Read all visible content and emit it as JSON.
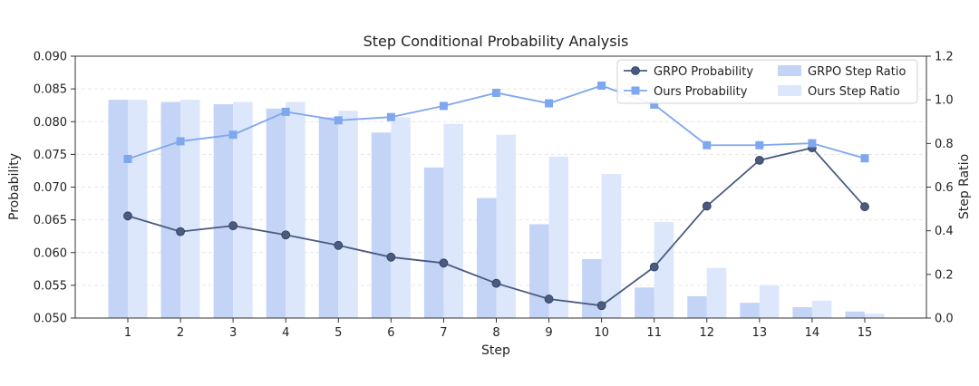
{
  "chart_data": {
    "type": "bar+line",
    "title": "Step Conditional Probability Analysis",
    "xlabel": "Step",
    "ylabel_left": "Probability",
    "ylabel_right": "Step Ratio",
    "categories": [
      "1",
      "2",
      "3",
      "4",
      "5",
      "6",
      "7",
      "8",
      "9",
      "10",
      "11",
      "12",
      "13",
      "14",
      "15"
    ],
    "ylim_left": [
      0.05,
      0.09
    ],
    "yticks_left": [
      "0.050",
      "0.055",
      "0.060",
      "0.065",
      "0.070",
      "0.075",
      "0.080",
      "0.085",
      "0.090"
    ],
    "ylim_right": [
      0.0,
      1.2
    ],
    "yticks_right": [
      "0.0",
      "0.2",
      "0.4",
      "0.6",
      "0.8",
      "1.0",
      "1.2"
    ],
    "grid": true,
    "legend_position": "top-right",
    "series": [
      {
        "name": "GRPO Probability",
        "kind": "line",
        "axis": "left",
        "marker": "circle",
        "color": "#4a5b80",
        "values": [
          0.0656,
          0.0632,
          0.0641,
          0.0627,
          0.0611,
          0.0593,
          0.0584,
          0.0553,
          0.0529,
          0.0519,
          0.0578,
          0.0671,
          0.0741,
          0.076,
          0.067
        ]
      },
      {
        "name": "Ours Probability",
        "kind": "line",
        "axis": "left",
        "marker": "square",
        "color": "#7fa7ef",
        "values": [
          0.0743,
          0.077,
          0.078,
          0.0815,
          0.0802,
          0.0807,
          0.0824,
          0.0844,
          0.0828,
          0.0855,
          0.0826,
          0.0764,
          0.0764,
          0.0767,
          0.0744
        ]
      },
      {
        "name": "GRPO Step Ratio",
        "kind": "bar",
        "axis": "right",
        "color": "#c3d4f7",
        "values": [
          1.0,
          0.99,
          0.98,
          0.96,
          0.92,
          0.85,
          0.69,
          0.55,
          0.43,
          0.27,
          0.14,
          0.1,
          0.07,
          0.05,
          0.03
        ]
      },
      {
        "name": "Ours Step Ratio",
        "kind": "bar",
        "axis": "right",
        "color": "#dde7fb",
        "values": [
          1.0,
          1.0,
          0.99,
          0.99,
          0.95,
          0.92,
          0.89,
          0.84,
          0.74,
          0.66,
          0.44,
          0.23,
          0.15,
          0.08,
          0.02
        ]
      }
    ]
  }
}
